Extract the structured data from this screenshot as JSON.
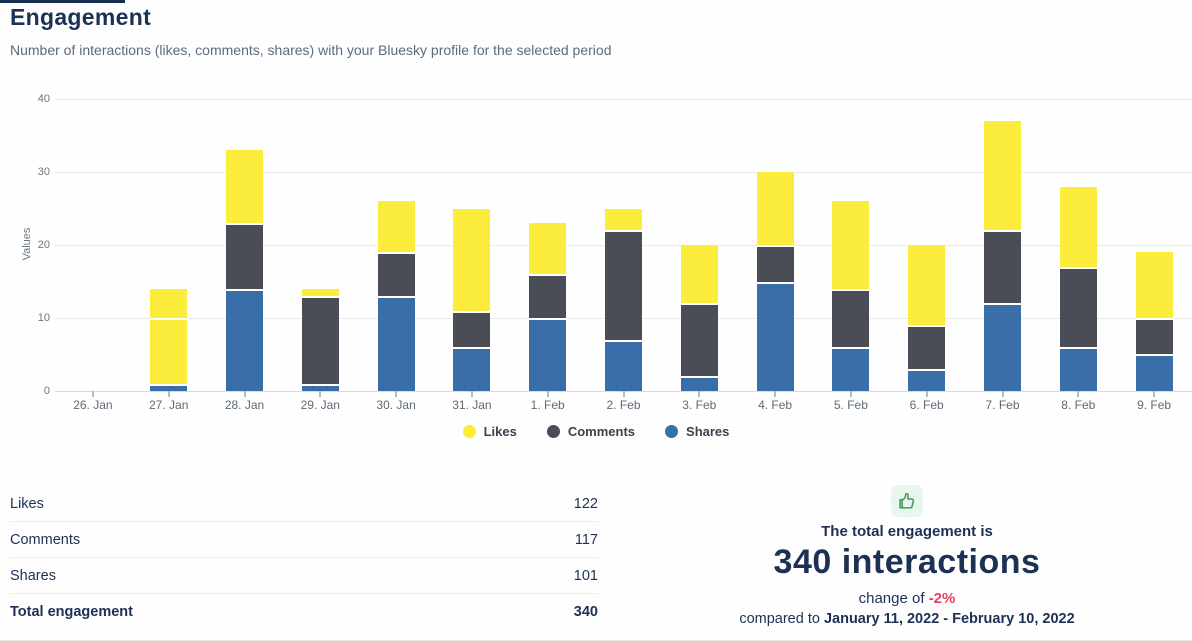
{
  "page": {
    "title": "Engagement",
    "subtitle": "Number of interactions (likes, comments, shares) with your Bluesky profile for the selected period"
  },
  "colors": {
    "likes": "#fcec3c",
    "comments": "#4a4d56",
    "shares": "#3a6ea8",
    "navy_text": "#1c3154",
    "negative_change": "#e8415f",
    "icon_green": "#3f9d58"
  },
  "chart_data": {
    "type": "bar",
    "stacked": true,
    "ylabel": "Values",
    "ylim": [
      0,
      40
    ],
    "yticks": [
      0,
      10,
      20,
      30,
      40
    ],
    "grid": true,
    "legend_position": "bottom",
    "categories": [
      "26. Jan",
      "27. Jan",
      "28. Jan",
      "29. Jan",
      "30. Jan",
      "31. Jan",
      "1. Feb",
      "2. Feb",
      "3. Feb",
      "4. Feb",
      "5. Feb",
      "6. Feb",
      "7. Feb",
      "8. Feb",
      "9. Feb"
    ],
    "series": [
      {
        "name": "Likes",
        "color": "#fcec3c",
        "values": [
          0,
          4,
          10,
          1,
          7,
          14,
          7,
          3,
          8,
          10,
          12,
          11,
          15,
          11,
          9
        ]
      },
      {
        "name": "Comments",
        "color": "#4a4d56",
        "values": [
          0,
          9,
          9,
          12,
          6,
          5,
          6,
          15,
          10,
          5,
          8,
          6,
          10,
          11,
          5
        ]
      },
      {
        "name": "Shares",
        "color": "#3a6ea8",
        "values": [
          0,
          1,
          14,
          1,
          13,
          6,
          10,
          7,
          2,
          15,
          6,
          3,
          12,
          6,
          5
        ]
      }
    ],
    "stack_order_bottom_to_top": [
      "Shares",
      "Comments",
      "Likes"
    ],
    "bar_totals": [
      0,
      14,
      33,
      14,
      26,
      25,
      23,
      25,
      20,
      30,
      26,
      20,
      37,
      28,
      19
    ],
    "render_anomaly": {
      "category": "27. Jan",
      "series": "Comments",
      "rendered_color": "#fcec3c"
    }
  },
  "summary_table": {
    "rows": [
      {
        "label": "Likes",
        "value": "122"
      },
      {
        "label": "Comments",
        "value": "117"
      },
      {
        "label": "Shares",
        "value": "101"
      },
      {
        "label": "Total engagement",
        "value": "340"
      }
    ]
  },
  "total_panel": {
    "icon": "thumbs-up-icon",
    "line1": "The total engagement is",
    "headline": "340 interactions",
    "change_prefix": "change of ",
    "change_value": "-2%",
    "compare_prefix": "compared to ",
    "compare_range": "January 11, 2022 - February 10, 2022"
  }
}
